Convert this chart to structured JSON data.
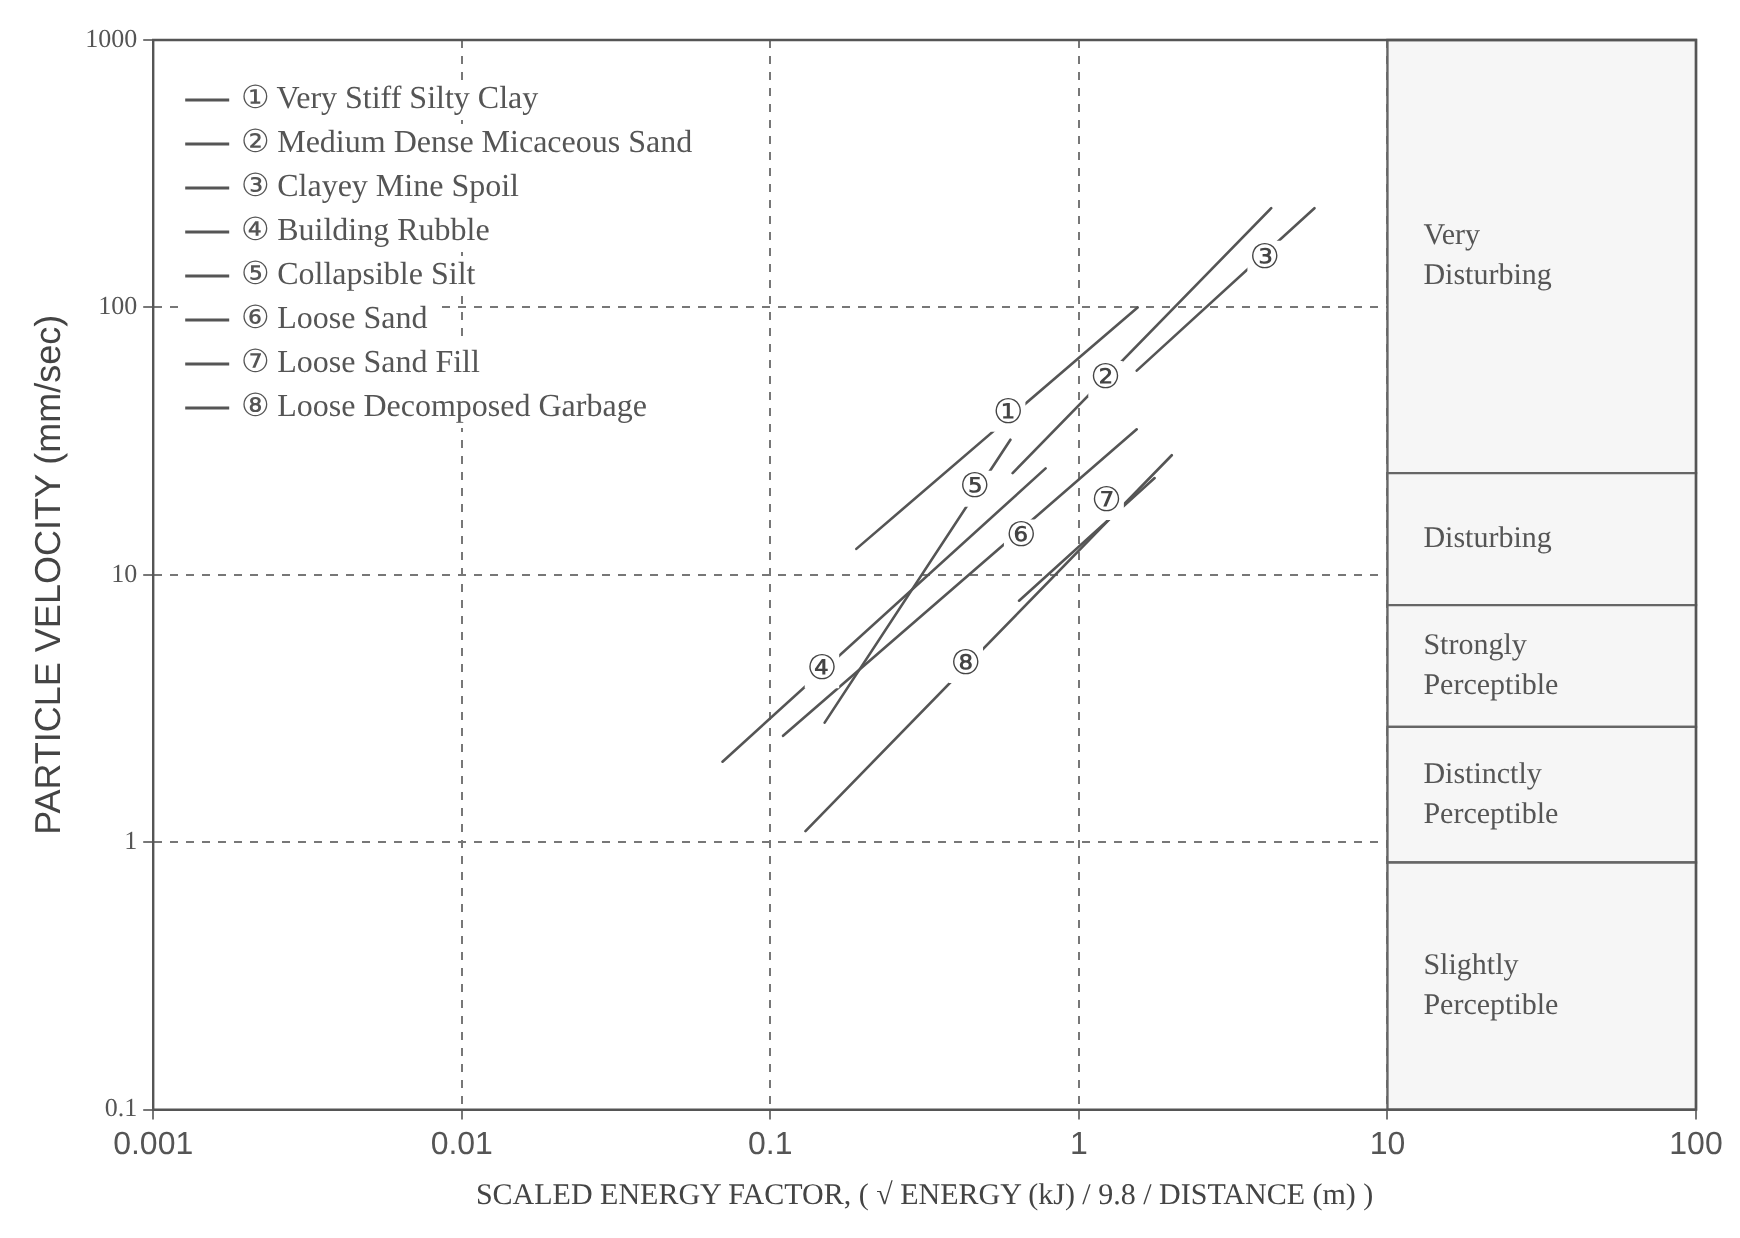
{
  "chart_data": {
    "type": "line",
    "xlabel": "SCALED ENERGY FACTOR, ( √ ENERGY (kJ) / 9.8 / DISTANCE (m) )",
    "ylabel": "PARTICLE VELOCITY (mm/sec)",
    "log": "xy",
    "xlim": [
      0.001,
      100
    ],
    "xticks": [
      0.001,
      0.01,
      0.1,
      1,
      10,
      100
    ],
    "ylim": [
      0.1,
      1000
    ],
    "yticks": [
      0.1,
      1,
      10,
      100,
      1000
    ],
    "grid": true,
    "legend": "top left",
    "marker": "none",
    "line_style": "solid",
    "series": [
      {
        "name": "① Very Stiff Silty Clay",
        "color": "#555555",
        "x": [
          0.19,
          1.55
        ],
        "values": [
          12.5,
          100
        ]
      },
      {
        "name": "② Medium Dense Micaceous Sand",
        "color": "#555555",
        "x": [
          0.61,
          4.2
        ],
        "values": [
          24,
          235
        ]
      },
      {
        "name": "③ Clayey Mine Spoil",
        "color": "#555555",
        "x": [
          1.54,
          5.8
        ],
        "values": [
          58,
          235
        ]
      },
      {
        "name": "④ Building Rubble",
        "color": "#555555",
        "x": [
          0.07,
          0.78
        ],
        "values": [
          2,
          25
        ]
      },
      {
        "name": "⑤ Collapsible Silt",
        "color": "#555555",
        "x": [
          0.15,
          0.6
        ],
        "values": [
          2.8,
          32
        ]
      },
      {
        "name": "⑥ Loose Sand",
        "color": "#555555",
        "x": [
          0.11,
          1.54
        ],
        "values": [
          2.5,
          35
        ]
      },
      {
        "name": "⑦ Loose Sand Fill",
        "color": "#555555",
        "x": [
          0.64,
          1.76
        ],
        "values": [
          8,
          23
        ]
      },
      {
        "name": "⑧ Loose Decomposed Garbage",
        "color": "#555555",
        "x": [
          0.13,
          2
        ],
        "values": [
          1.1,
          28
        ]
      }
    ],
    "annotations": [
      {
        "text": "①",
        "x": 0.59,
        "y": 40
      },
      {
        "text": "②",
        "x": 1.22,
        "y": 54
      },
      {
        "text": "③",
        "x": 4,
        "y": 152
      },
      {
        "text": "④",
        "x": 0.147,
        "y": 4.4
      },
      {
        "text": "⑤",
        "x": 0.46,
        "y": 21
      },
      {
        "text": "⑥",
        "x": 0.65,
        "y": 13.8
      },
      {
        "text": "⑦",
        "x": 1.23,
        "y": 18.7
      },
      {
        "text": "⑧",
        "x": 0.43,
        "y": 4.6
      }
    ],
    "bands": [
      {
        "axis": "y",
        "from": 24,
        "to": 1000,
        "label": "Very\nDisturbing",
        "color": "#f6f6f6"
      },
      {
        "axis": "y",
        "from": 7.7,
        "to": 24,
        "label": "Disturbing",
        "color": "#f6f6f6"
      },
      {
        "axis": "y",
        "from": 2.7,
        "to": 7.7,
        "label": "Strongly\nPerceptible",
        "color": "#f6f6f6"
      },
      {
        "axis": "y",
        "from": 0.84,
        "to": 2.7,
        "label": "Distinctly\nPerceptible",
        "color": "#f6f6f6"
      },
      {
        "axis": "y",
        "from": 0.1,
        "to": 0.84,
        "label": "Slightly\nPerceptible",
        "color": "#f6f6f6"
      }
    ]
  }
}
